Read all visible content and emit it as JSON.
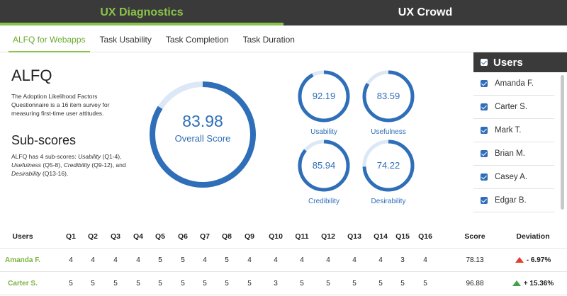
{
  "nav": {
    "tabs": [
      {
        "label": "UX Diagnostics",
        "active": true
      },
      {
        "label": "UX Crowd",
        "active": false
      }
    ]
  },
  "subnav": {
    "tabs": [
      {
        "label": "ALFQ for Webapps",
        "active": true
      },
      {
        "label": "Task Usability",
        "active": false
      },
      {
        "label": "Task Completion",
        "active": false
      },
      {
        "label": "Task Duration",
        "active": false
      }
    ]
  },
  "info": {
    "title": "ALFQ",
    "description": "The Adoption Likelihood Factors Questionnaire is a 16 item survey for measuring first-time user attitudes.",
    "subscores_title": "Sub-scores",
    "subscores_intro": "ALFQ has 4 sub-scores: ",
    "subscore_terms": [
      {
        "name": "Usability",
        "range": " (Q1-4), "
      },
      {
        "name": "Usefulness",
        "range": " (Q5-8), "
      },
      {
        "name": "Credibility",
        "range": " (Q9-12), and "
      },
      {
        "name": "Desirability",
        "range": " (Q13-16)."
      }
    ]
  },
  "scores": {
    "overall": {
      "value": "83.98",
      "label": "Overall Score",
      "fraction": 0.8398
    },
    "subs": [
      {
        "value": "92.19",
        "label": "Usability",
        "fraction": 0.9219
      },
      {
        "value": "83.59",
        "label": "Usefulness",
        "fraction": 0.8359
      },
      {
        "value": "85.94",
        "label": "Credibility",
        "fraction": 0.8594
      },
      {
        "value": "74.22",
        "label": "Desirability",
        "fraction": 0.7422
      }
    ]
  },
  "users_panel": {
    "title": "Users",
    "users": [
      "Amanda F.",
      "Carter S.",
      "Mark T.",
      "Brian M.",
      "Casey A.",
      "Edgar B."
    ]
  },
  "table": {
    "headers": [
      "Users",
      "Q1",
      "Q2",
      "Q3",
      "Q4",
      "Q5",
      "Q6",
      "Q7",
      "Q8",
      "Q9",
      "Q10",
      "Q11",
      "Q12",
      "Q13",
      "Q14",
      "Q15",
      "Q16",
      "Score",
      "Deviation"
    ],
    "rows": [
      {
        "user": "Amanda F.",
        "answers": [
          "4",
          "4",
          "4",
          "4",
          "5",
          "5",
          "4",
          "5",
          "4",
          "4",
          "4",
          "4",
          "4",
          "4",
          "3",
          "4"
        ],
        "score": "78.13",
        "deviation": "- 6.97%",
        "trend": "down"
      },
      {
        "user": "Carter S.",
        "answers": [
          "5",
          "5",
          "5",
          "5",
          "5",
          "5",
          "5",
          "5",
          "5",
          "3",
          "5",
          "5",
          "5",
          "5",
          "5",
          "5"
        ],
        "score": "96.88",
        "deviation": "+ 15.36%",
        "trend": "up"
      }
    ]
  },
  "colors": {
    "accent_green": "#8bc34a",
    "gauge_blue": "#2f6eb8",
    "gauge_track": "#dce8f5",
    "nav_dark": "#3a3a3a",
    "up": "#43a047",
    "down": "#e53935"
  }
}
